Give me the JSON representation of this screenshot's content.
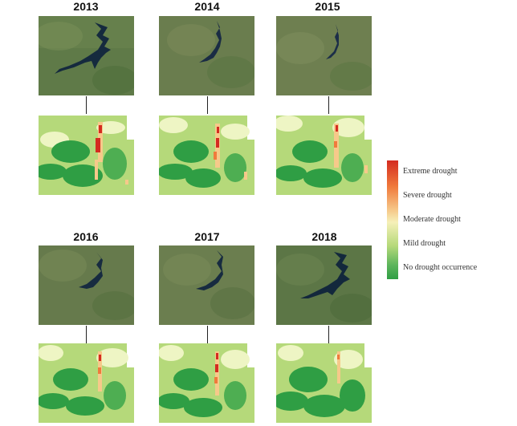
{
  "panels": [
    {
      "year": "2013"
    },
    {
      "year": "2014"
    },
    {
      "year": "2015"
    },
    {
      "year": "2016"
    },
    {
      "year": "2017"
    },
    {
      "year": "2018"
    }
  ],
  "legend": {
    "items": [
      {
        "label": "Extreme drought",
        "color": "#d42b20"
      },
      {
        "label": "Severe drought",
        "color": "#f07a3c"
      },
      {
        "label": "Moderate drought",
        "color": "#f6f0b8"
      },
      {
        "label": "Mild drought",
        "color": "#b5d97a"
      },
      {
        "label": "No drought occurrence",
        "color": "#2f9e44"
      }
    ]
  }
}
